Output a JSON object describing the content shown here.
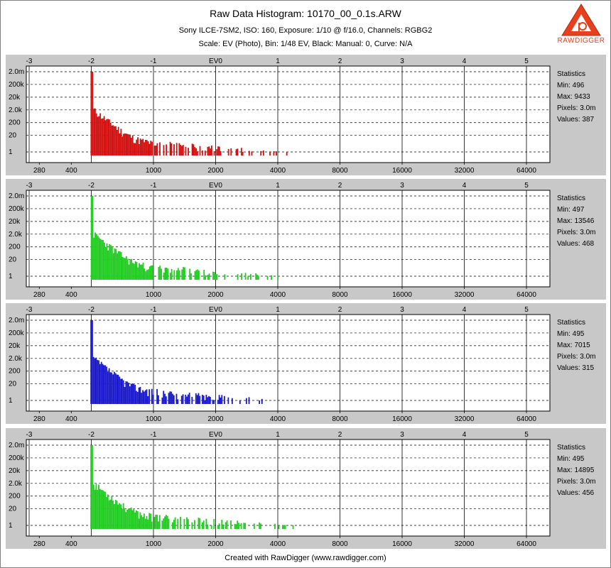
{
  "title": "Raw Data Histogram: 10170_00_0.1s.ARW",
  "subtitle": "Sony ILCE-7SM2, ISO: 160, Exposure: 1/10 @ f/16.0, Channels: RGBG2",
  "subtitle2": "Scale: EV (Photo), Bin: 1/48 EV, Black: Manual: 0, Curve: N/A",
  "logo_text": "RAWDIGGER",
  "footer": "Created with RawDigger (www.rawdigger.com)",
  "colors": {
    "panel_bg": "#c8c8c8",
    "logo": "#e8401c"
  },
  "chart_data": [
    {
      "type": "bar",
      "channel": "R",
      "color": "#d21010",
      "x_scale": "log2",
      "y_scale": "log10",
      "ev_ticks": [
        "-3",
        "-2",
        "-1",
        "EV0",
        "1",
        "2",
        "3",
        "4",
        "5"
      ],
      "value_ticks": [
        "280",
        "400",
        "1000",
        "2000",
        "4000",
        "8000",
        "16000",
        "32000",
        "64000"
      ],
      "y_ticks": [
        "2.0m",
        "200k",
        "20k",
        "2.0k",
        "200",
        "20",
        "1"
      ],
      "stats": {
        "heading": "Statistics",
        "min": "Min: 496",
        "max": "Max: 9433",
        "pixels": "Pixels: 3.0m",
        "values": "Values: 387"
      },
      "min_value": 496,
      "max_value": 9433,
      "peak_count": 2000000,
      "seed": 11
    },
    {
      "type": "bar",
      "channel": "G",
      "color": "#22cc22",
      "x_scale": "log2",
      "y_scale": "log10",
      "ev_ticks": [
        "-3",
        "-2",
        "-1",
        "EV0",
        "1",
        "2",
        "3",
        "4",
        "5"
      ],
      "value_ticks": [
        "280",
        "400",
        "1000",
        "2000",
        "4000",
        "8000",
        "16000",
        "32000",
        "64000"
      ],
      "y_ticks": [
        "2.0m",
        "200k",
        "20k",
        "2.0k",
        "200",
        "20",
        "1"
      ],
      "stats": {
        "heading": "Statistics",
        "min": "Min: 497",
        "max": "Max: 13546",
        "pixels": "Pixels: 3.0m",
        "values": "Values: 468"
      },
      "min_value": 497,
      "max_value": 13546,
      "peak_count": 2000000,
      "seed": 23
    },
    {
      "type": "bar",
      "channel": "B",
      "color": "#1a1acc",
      "x_scale": "log2",
      "y_scale": "log10",
      "ev_ticks": [
        "-3",
        "-2",
        "-1",
        "EV0",
        "1",
        "2",
        "3",
        "4",
        "5"
      ],
      "value_ticks": [
        "280",
        "400",
        "1000",
        "2000",
        "4000",
        "8000",
        "16000",
        "32000",
        "64000"
      ],
      "y_ticks": [
        "2.0m",
        "200k",
        "20k",
        "2.0k",
        "200",
        "20",
        "1"
      ],
      "stats": {
        "heading": "Statistics",
        "min": "Min: 495",
        "max": "Max: 7015",
        "pixels": "Pixels: 3.0m",
        "values": "Values: 315"
      },
      "min_value": 495,
      "max_value": 7015,
      "peak_count": 2000000,
      "seed": 37
    },
    {
      "type": "bar",
      "channel": "G2",
      "color": "#22cc22",
      "x_scale": "log2",
      "y_scale": "log10",
      "ev_ticks": [
        "-3",
        "-2",
        "-1",
        "EV0",
        "1",
        "2",
        "3",
        "4",
        "5"
      ],
      "value_ticks": [
        "280",
        "400",
        "1000",
        "2000",
        "4000",
        "8000",
        "16000",
        "32000",
        "64000"
      ],
      "y_ticks": [
        "2.0m",
        "200k",
        "20k",
        "2.0k",
        "200",
        "20",
        "1"
      ],
      "stats": {
        "heading": "Statistics",
        "min": "Min: 495",
        "max": "Max: 14895",
        "pixels": "Pixels: 3.0m",
        "values": "Values: 456"
      },
      "min_value": 495,
      "max_value": 14895,
      "peak_count": 2000000,
      "seed": 53
    }
  ]
}
